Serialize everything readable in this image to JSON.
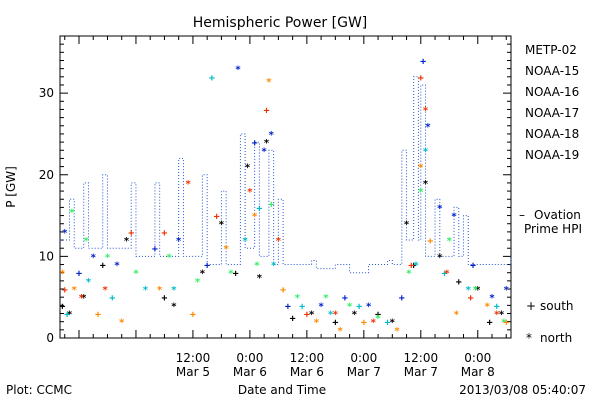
{
  "chart_data": {
    "type": "scatter",
    "title": "Hemispheric Power [GW]",
    "ylabel": "P [GW]",
    "xlabel": "Date and Time",
    "xlim": [
      "2013-03-04 08:00",
      "2013-03-08 07:00"
    ],
    "ylim": [
      0,
      37
    ],
    "yticks": [
      0,
      10,
      20,
      30
    ],
    "xticks": [
      {
        "t": "2013-03-05 12:00",
        "label1": "12:00",
        "label2": "Mar 5"
      },
      {
        "t": "2013-03-06 00:00",
        "label1": "0:00",
        "label2": "Mar 6"
      },
      {
        "t": "2013-03-06 12:00",
        "label1": "12:00",
        "label2": "Mar 6"
      },
      {
        "t": "2013-03-07 00:00",
        "label1": "0:00",
        "label2": "Mar 7"
      },
      {
        "t": "2013-03-07 12:00",
        "label1": "12:00",
        "label2": "Mar 7"
      },
      {
        "t": "2013-03-08 00:00",
        "label1": "0:00",
        "label2": "Mar 8"
      }
    ],
    "grid": false,
    "legend_placement": "right",
    "series": [
      {
        "name": "METP-02",
        "color": "#000000",
        "points": [
          [
            "2013-03-04 08:30",
            4,
            "+"
          ],
          [
            "2013-03-04 10:00",
            3,
            "*"
          ],
          [
            "2013-03-04 13:00",
            5,
            "*"
          ],
          [
            "2013-03-04 17:00",
            9,
            "+"
          ],
          [
            "2013-03-04 22:00",
            12,
            "*"
          ],
          [
            "2013-03-05 06:00",
            5,
            "+"
          ],
          [
            "2013-03-05 08:00",
            4,
            "*"
          ],
          [
            "2013-03-05 14:00",
            8,
            "*"
          ],
          [
            "2013-03-05 18:00",
            14,
            "*"
          ],
          [
            "2013-03-05 21:00",
            8,
            "+"
          ],
          [
            "2013-03-05 23:30",
            21,
            "*"
          ],
          [
            "2013-03-06 02:00",
            7.5,
            "*"
          ],
          [
            "2013-03-06 03:30",
            24,
            "*"
          ],
          [
            "2013-03-06 09:00",
            2.5,
            "+"
          ],
          [
            "2013-03-06 13:00",
            3,
            "*"
          ],
          [
            "2013-03-06 18:00",
            2,
            "+"
          ],
          [
            "2013-03-06 22:00",
            3,
            "*"
          ],
          [
            "2013-03-07 03:00",
            3,
            "+"
          ],
          [
            "2013-03-07 06:00",
            2,
            "*"
          ],
          [
            "2013-03-07 09:00",
            14,
            "*"
          ],
          [
            "2013-03-07 10:30",
            9,
            "+"
          ],
          [
            "2013-03-07 13:00",
            19,
            "*"
          ],
          [
            "2013-03-07 16:00",
            10,
            "*"
          ],
          [
            "2013-03-07 20:00",
            7,
            "+"
          ],
          [
            "2013-03-08 00:00",
            6,
            "*"
          ],
          [
            "2013-03-08 02:30",
            2,
            "+"
          ],
          [
            "2013-03-08 05:00",
            3,
            "*"
          ]
        ]
      },
      {
        "name": "NOAA-15",
        "color": "#0022cc",
        "points": [
          [
            "2013-03-04 09:00",
            13,
            "*"
          ],
          [
            "2013-03-04 12:00",
            8,
            "+"
          ],
          [
            "2013-03-04 15:00",
            10,
            "*"
          ],
          [
            "2013-03-04 20:00",
            9,
            "*"
          ],
          [
            "2013-03-05 04:00",
            11,
            "+"
          ],
          [
            "2013-03-05 09:00",
            12,
            "*"
          ],
          [
            "2013-03-05 15:00",
            9,
            "+"
          ],
          [
            "2013-03-05 21:30",
            33,
            "*"
          ],
          [
            "2013-03-06 01:00",
            24,
            "+"
          ],
          [
            "2013-03-06 03:00",
            23,
            "*"
          ],
          [
            "2013-03-06 04:30",
            25,
            "*"
          ],
          [
            "2013-03-06 08:00",
            4,
            "+"
          ],
          [
            "2013-03-06 15:00",
            4,
            "*"
          ],
          [
            "2013-03-06 20:00",
            5,
            "+"
          ],
          [
            "2013-03-07 01:00",
            4,
            "*"
          ],
          [
            "2013-03-07 08:00",
            5,
            "+"
          ],
          [
            "2013-03-07 12:30",
            34,
            "+"
          ],
          [
            "2013-03-07 13:30",
            26,
            "*"
          ],
          [
            "2013-03-07 16:00",
            16,
            "*"
          ],
          [
            "2013-03-07 19:00",
            15,
            "*"
          ],
          [
            "2013-03-07 23:00",
            9,
            "+"
          ],
          [
            "2013-03-08 03:00",
            5,
            "*"
          ],
          [
            "2013-03-08 06:00",
            6,
            "*"
          ]
        ]
      },
      {
        "name": "NOAA-16",
        "color": "#00bbcc",
        "points": [
          [
            "2013-03-04 09:30",
            3,
            "+"
          ],
          [
            "2013-03-04 14:00",
            7,
            "*"
          ],
          [
            "2013-03-04 19:00",
            5,
            "+"
          ],
          [
            "2013-03-05 02:00",
            6,
            "*"
          ],
          [
            "2013-03-05 08:00",
            6,
            "*"
          ],
          [
            "2013-03-05 16:00",
            32,
            "+"
          ],
          [
            "2013-03-05 23:00",
            12,
            "*"
          ],
          [
            "2013-03-06 02:00",
            16,
            "+"
          ],
          [
            "2013-03-06 05:00",
            9,
            "*"
          ],
          [
            "2013-03-06 11:00",
            4,
            "+"
          ],
          [
            "2013-03-06 17:00",
            3,
            "*"
          ],
          [
            "2013-03-06 23:00",
            4,
            "+"
          ],
          [
            "2013-03-07 05:00",
            2,
            "+"
          ],
          [
            "2013-03-07 11:00",
            9,
            "*"
          ],
          [
            "2013-03-07 13:00",
            23,
            "*"
          ],
          [
            "2013-03-07 17:00",
            8,
            "+"
          ],
          [
            "2013-03-07 22:00",
            6,
            "*"
          ],
          [
            "2013-03-08 04:00",
            4,
            "+"
          ]
        ]
      },
      {
        "name": "NOAA-17",
        "color": "#33ee66",
        "points": [
          [
            "2013-03-04 10:30",
            15.5,
            "*"
          ],
          [
            "2013-03-04 13:30",
            12,
            "*"
          ],
          [
            "2013-03-04 18:00",
            10,
            "*"
          ],
          [
            "2013-03-05 00:00",
            8,
            "*"
          ],
          [
            "2013-03-05 07:00",
            10,
            "*"
          ],
          [
            "2013-03-05 13:00",
            7,
            "*"
          ],
          [
            "2013-03-05 20:00",
            8,
            "*"
          ],
          [
            "2013-03-06 01:30",
            9,
            "*"
          ],
          [
            "2013-03-06 04:30",
            16.5,
            "+"
          ],
          [
            "2013-03-06 10:00",
            5,
            "*"
          ],
          [
            "2013-03-06 16:00",
            5,
            "*"
          ],
          [
            "2013-03-06 21:00",
            4,
            "*"
          ],
          [
            "2013-03-07 03:00",
            2.5,
            "*"
          ],
          [
            "2013-03-07 09:30",
            8,
            "*"
          ],
          [
            "2013-03-07 12:00",
            18,
            "*"
          ],
          [
            "2013-03-07 18:00",
            12,
            "*"
          ],
          [
            "2013-03-07 23:30",
            6,
            "*"
          ],
          [
            "2013-03-08 05:30",
            2,
            "*"
          ]
        ]
      },
      {
        "name": "NOAA-18",
        "color": "#ff8800",
        "points": [
          [
            "2013-03-04 08:30",
            8,
            "*"
          ],
          [
            "2013-03-04 11:00",
            6,
            "*"
          ],
          [
            "2013-03-04 16:00",
            3,
            "+"
          ],
          [
            "2013-03-04 21:00",
            2,
            "*"
          ],
          [
            "2013-03-05 05:00",
            6,
            "*"
          ],
          [
            "2013-03-05 12:00",
            3,
            "+"
          ],
          [
            "2013-03-05 19:00",
            11,
            "*"
          ],
          [
            "2013-03-06 01:00",
            15,
            "*"
          ],
          [
            "2013-03-06 04:00",
            31.5,
            "*"
          ],
          [
            "2013-03-06 07:00",
            6,
            "+"
          ],
          [
            "2013-03-06 14:00",
            2,
            "*"
          ],
          [
            "2013-03-06 19:00",
            1,
            "*"
          ],
          [
            "2013-03-07 00:00",
            2,
            "+"
          ],
          [
            "2013-03-07 07:00",
            1,
            "*"
          ],
          [
            "2013-03-07 12:00",
            21,
            "*"
          ],
          [
            "2013-03-07 14:00",
            12,
            "+"
          ],
          [
            "2013-03-07 19:30",
            3,
            "*"
          ],
          [
            "2013-03-08 02:00",
            4,
            "*"
          ],
          [
            "2013-03-08 06:00",
            2,
            "+"
          ]
        ]
      },
      {
        "name": "NOAA-19",
        "color": "#ee3300",
        "points": [
          [
            "2013-03-04 09:00",
            6,
            "+"
          ],
          [
            "2013-03-04 12:30",
            5,
            "*"
          ],
          [
            "2013-03-04 17:30",
            6,
            "*"
          ],
          [
            "2013-03-04 23:00",
            13,
            "+"
          ],
          [
            "2013-03-05 06:00",
            13,
            "+"
          ],
          [
            "2013-03-05 11:00",
            19,
            "*"
          ],
          [
            "2013-03-05 17:00",
            15,
            "+"
          ],
          [
            "2013-03-06 00:00",
            18,
            "*"
          ],
          [
            "2013-03-06 03:30",
            28,
            "+"
          ],
          [
            "2013-03-06 06:00",
            12,
            "*"
          ],
          [
            "2013-03-06 12:00",
            3,
            "+"
          ],
          [
            "2013-03-06 18:00",
            3,
            "*"
          ],
          [
            "2013-03-07 02:00",
            2,
            "*"
          ],
          [
            "2013-03-07 10:00",
            9,
            "+"
          ],
          [
            "2013-03-07 12:00",
            32,
            "+"
          ],
          [
            "2013-03-07 13:00",
            28,
            "*"
          ],
          [
            "2013-03-07 17:30",
            8,
            "*"
          ],
          [
            "2013-03-07 22:30",
            5,
            "+"
          ],
          [
            "2013-03-08 04:00",
            3,
            "*"
          ]
        ]
      },
      {
        "name": "Ovation Prime HPI",
        "color": "#2255cc",
        "style": "step",
        "points": [
          [
            "2013-03-04 08:00",
            12
          ],
          [
            "2013-03-04 10:00",
            17
          ],
          [
            "2013-03-04 11:00",
            11
          ],
          [
            "2013-03-04 13:00",
            19
          ],
          [
            "2013-03-04 14:00",
            11
          ],
          [
            "2013-03-04 17:00",
            20
          ],
          [
            "2013-03-04 18:00",
            11
          ],
          [
            "2013-03-04 23:00",
            19
          ],
          [
            "2013-03-05 00:00",
            10
          ],
          [
            "2013-03-05 04:00",
            19
          ],
          [
            "2013-03-05 05:00",
            10
          ],
          [
            "2013-03-05 09:00",
            22
          ],
          [
            "2013-03-05 10:00",
            10
          ],
          [
            "2013-03-05 14:00",
            20
          ],
          [
            "2013-03-05 15:00",
            9
          ],
          [
            "2013-03-05 18:00",
            18
          ],
          [
            "2013-03-05 19:00",
            9
          ],
          [
            "2013-03-05 22:00",
            25
          ],
          [
            "2013-03-05 23:00",
            11
          ],
          [
            "2013-03-06 01:00",
            24
          ],
          [
            "2013-03-06 02:00",
            10
          ],
          [
            "2013-03-06 04:00",
            23
          ],
          [
            "2013-03-06 05:00",
            9
          ],
          [
            "2013-03-06 06:00",
            17
          ],
          [
            "2013-03-06 07:00",
            9
          ],
          [
            "2013-03-06 13:00",
            9.5
          ],
          [
            "2013-03-06 14:00",
            8.5
          ],
          [
            "2013-03-06 18:00",
            9
          ],
          [
            "2013-03-06 21:00",
            8
          ],
          [
            "2013-03-07 00:00",
            8
          ],
          [
            "2013-03-07 01:00",
            9
          ],
          [
            "2013-03-07 05:00",
            9.5
          ],
          [
            "2013-03-07 06:00",
            9
          ],
          [
            "2013-03-07 08:00",
            23
          ],
          [
            "2013-03-07 09:00",
            12
          ],
          [
            "2013-03-07 10:30",
            32
          ],
          [
            "2013-03-07 11:30",
            12
          ],
          [
            "2013-03-07 12:00",
            31
          ],
          [
            "2013-03-07 13:00",
            10
          ],
          [
            "2013-03-07 15:00",
            17
          ],
          [
            "2013-03-07 16:00",
            10
          ],
          [
            "2013-03-07 19:00",
            16
          ],
          [
            "2013-03-07 20:00",
            10
          ],
          [
            "2013-03-07 21:00",
            15
          ],
          [
            "2013-03-07 22:00",
            9
          ],
          [
            "2013-03-08 06:30",
            9
          ],
          [
            "2013-03-08 07:00",
            10
          ]
        ]
      }
    ]
  },
  "legend": {
    "entries": [
      {
        "label": "METP-02",
        "color": "#000000"
      },
      {
        "label": "NOAA-15",
        "color": "#0022cc"
      },
      {
        "label": "NOAA-16",
        "color": "#00bbcc"
      },
      {
        "label": "NOAA-17",
        "color": "#33ee66"
      },
      {
        "label": "NOAA-18",
        "color": "#ff8800"
      },
      {
        "label": "NOAA-19",
        "color": "#ee3300"
      }
    ],
    "ovation_dash": "–",
    "ovation_line1": "Ovation",
    "ovation_line2": "Prime HPI",
    "ovation_color": "#2255cc",
    "south_symbol": "+",
    "south_label": "south",
    "north_symbol": "*",
    "north_label": "north"
  },
  "footer": {
    "left": "Plot: CCMC",
    "center": "Date and Time",
    "right": "2013/03/08 05:40:07"
  }
}
